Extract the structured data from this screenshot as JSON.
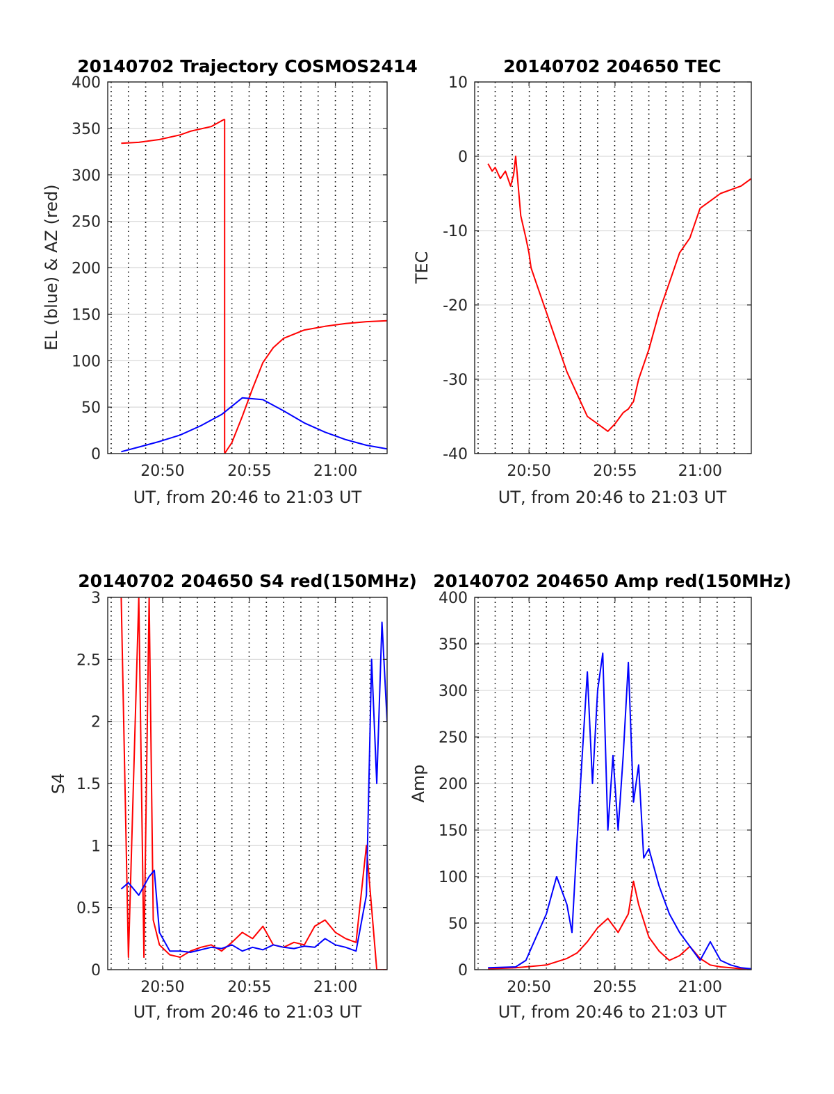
{
  "colors": {
    "red": "#ff0000",
    "blue": "#0000ff",
    "grid": "#d9d9d9",
    "dotted": "#000000",
    "axis": "#262626"
  },
  "chart_data": [
    {
      "type": "line",
      "title": "20140702 Trajectory COSMOS2414",
      "xlabel": "UT, from 20:46 to 21:03 UT",
      "ylabel": "EL (blue) & AZ (red)",
      "xlim": [
        20.78,
        21.05
      ],
      "ylim": [
        0,
        400
      ],
      "yticks": [
        0,
        50,
        100,
        150,
        200,
        250,
        300,
        350,
        400
      ],
      "ytick_labels": [
        "0",
        "50",
        "100",
        "150",
        "200",
        "250",
        "300",
        "350",
        "400"
      ],
      "xticks": [
        20.833,
        20.917,
        21.0
      ],
      "xtick_labels": [
        "20:50",
        "20:55",
        "21:00"
      ],
      "grid": true,
      "series": [
        {
          "color": "#ff0000",
          "x": [
            20.793,
            20.81,
            20.83,
            20.85,
            20.86,
            20.88,
            20.893
          ],
          "y": [
            334,
            335,
            338,
            343,
            347,
            352,
            360
          ]
        },
        {
          "color": "#ff0000",
          "x": [
            20.893,
            20.893
          ],
          "y": [
            360,
            0
          ]
        },
        {
          "color": "#ff0000",
          "x": [
            20.893,
            20.9,
            20.91,
            20.92,
            20.93,
            20.94,
            20.95,
            20.97,
            20.99,
            21.01,
            21.03,
            21.05
          ],
          "y": [
            0,
            12,
            40,
            70,
            98,
            114,
            124,
            133,
            137,
            140,
            142,
            143
          ]
        },
        {
          "color": "#0000ff",
          "x": [
            20.793,
            20.81,
            20.83,
            20.85,
            20.87,
            20.89,
            20.9,
            20.91,
            20.93,
            20.95,
            20.97,
            20.99,
            21.01,
            21.03,
            21.05
          ],
          "y": [
            2,
            7,
            13,
            20,
            30,
            42,
            51,
            60,
            58,
            46,
            33,
            23,
            15,
            9,
            5
          ]
        }
      ]
    },
    {
      "type": "line",
      "title": "20140702 204650 TEC",
      "xlabel": "UT, from 20:46 to 21:03 UT",
      "ylabel": "TEC",
      "xlim": [
        20.78,
        21.05
      ],
      "ylim": [
        -40,
        10
      ],
      "yticks": [
        -40,
        -30,
        -20,
        -10,
        0,
        10
      ],
      "ytick_labels": [
        "-40",
        "-30",
        "-20",
        "-10",
        "0",
        "10"
      ],
      "xticks": [
        20.833,
        20.917,
        21.0
      ],
      "xtick_labels": [
        "20:50",
        "20:55",
        "21:00"
      ],
      "grid": true,
      "series": [
        {
          "color": "#ff0000",
          "x": [
            20.793,
            20.797,
            20.8,
            20.805,
            20.81,
            20.815,
            20.818,
            20.82,
            20.825,
            20.83,
            20.833,
            20.835,
            20.84,
            20.85,
            20.86,
            20.87,
            20.88,
            20.89,
            20.9,
            20.91,
            20.917,
            20.925,
            20.93,
            20.935,
            20.94,
            20.95,
            20.96,
            20.97,
            20.98,
            20.99,
            21.0,
            21.02,
            21.04,
            21.05
          ],
          "y": [
            -1,
            -2,
            -1.5,
            -3,
            -2,
            -4,
            -2.5,
            0,
            -8,
            -11,
            -13,
            -15,
            -17,
            -21,
            -25,
            -29,
            -32,
            -35,
            -36,
            -37,
            -36,
            -34.5,
            -34,
            -33,
            -30,
            -26,
            -21,
            -17,
            -13,
            -11,
            -7,
            -5,
            -4,
            -3
          ]
        }
      ]
    },
    {
      "type": "line",
      "title": "20140702 204650 S4 red(150MHz)",
      "xlabel": "UT, from 20:46 to 21:03 UT",
      "ylabel": "S4",
      "xlim": [
        20.78,
        21.05
      ],
      "ylim": [
        0,
        3
      ],
      "yticks": [
        0,
        0.5,
        1,
        1.5,
        2,
        2.5,
        3
      ],
      "ytick_labels": [
        "0",
        "0.5",
        "1",
        "1.5",
        "2",
        "2.5",
        "3"
      ],
      "xticks": [
        20.833,
        20.917,
        21.0
      ],
      "xtick_labels": [
        "20:50",
        "20:55",
        "21:00"
      ],
      "grid": true,
      "series": [
        {
          "color": "#ff0000",
          "x": [
            20.793,
            20.8,
            20.81,
            20.815,
            20.82,
            20.824,
            20.83,
            20.84,
            20.85,
            20.86,
            20.87,
            20.88,
            20.89,
            20.9,
            20.91,
            20.92,
            20.93,
            20.94,
            20.95,
            20.96,
            20.97,
            20.98,
            20.99,
            21.0,
            21.01,
            21.02,
            21.03,
            21.04,
            21.05
          ],
          "y": [
            3,
            0.1,
            3,
            0.1,
            3,
            0.4,
            0.2,
            0.12,
            0.1,
            0.15,
            0.18,
            0.2,
            0.15,
            0.22,
            0.3,
            0.25,
            0.35,
            0.2,
            0.18,
            0.22,
            0.2,
            0.35,
            0.4,
            0.3,
            0.25,
            0.22,
            1.0,
            0.0,
            0.0
          ]
        },
        {
          "color": "#0000ff",
          "x": [
            20.793,
            20.8,
            20.81,
            20.82,
            20.825,
            20.83,
            20.84,
            20.85,
            20.86,
            20.87,
            20.88,
            20.89,
            20.9,
            20.91,
            20.92,
            20.93,
            20.94,
            20.95,
            20.96,
            20.97,
            20.98,
            20.99,
            21.0,
            21.01,
            21.02,
            21.03,
            21.035,
            21.04,
            21.045,
            21.05
          ],
          "y": [
            0.65,
            0.7,
            0.6,
            0.75,
            0.8,
            0.3,
            0.15,
            0.15,
            0.14,
            0.16,
            0.18,
            0.17,
            0.2,
            0.15,
            0.18,
            0.16,
            0.2,
            0.18,
            0.17,
            0.19,
            0.18,
            0.25,
            0.2,
            0.18,
            0.15,
            0.6,
            2.5,
            1.5,
            2.8,
            2.0
          ]
        }
      ]
    },
    {
      "type": "line",
      "title": "20140702 204650 Amp red(150MHz)",
      "xlabel": "UT, from 20:46 to 21:03 UT",
      "ylabel": "Amp",
      "xlim": [
        20.78,
        21.05
      ],
      "ylim": [
        0,
        400
      ],
      "yticks": [
        0,
        50,
        100,
        150,
        200,
        250,
        300,
        350,
        400
      ],
      "ytick_labels": [
        "0",
        "50",
        "100",
        "150",
        "200",
        "250",
        "300",
        "350",
        "400"
      ],
      "xticks": [
        20.833,
        20.917,
        21.0
      ],
      "xtick_labels": [
        "20:50",
        "20:55",
        "21:00"
      ],
      "grid": true,
      "series": [
        {
          "color": "#ff0000",
          "x": [
            20.793,
            20.82,
            20.85,
            20.87,
            20.88,
            20.89,
            20.9,
            20.91,
            20.92,
            20.93,
            20.935,
            20.94,
            20.95,
            20.96,
            20.97,
            20.98,
            20.99,
            21.0,
            21.01,
            21.02,
            21.03,
            21.04,
            21.05
          ],
          "y": [
            1,
            2,
            5,
            12,
            18,
            30,
            45,
            55,
            40,
            60,
            95,
            70,
            35,
            20,
            10,
            15,
            25,
            12,
            5,
            3,
            2,
            1,
            1
          ]
        },
        {
          "color": "#0000ff",
          "x": [
            20.793,
            20.82,
            20.83,
            20.84,
            20.85,
            20.86,
            20.87,
            20.875,
            20.88,
            20.89,
            20.895,
            20.9,
            20.905,
            20.91,
            20.915,
            20.92,
            20.925,
            20.93,
            20.935,
            20.94,
            20.945,
            20.95,
            20.96,
            20.97,
            20.98,
            20.99,
            21.0,
            21.01,
            21.02,
            21.03,
            21.04,
            21.05
          ],
          "y": [
            2,
            3,
            10,
            35,
            60,
            100,
            70,
            40,
            140,
            320,
            200,
            300,
            340,
            150,
            230,
            150,
            230,
            330,
            180,
            220,
            120,
            130,
            90,
            60,
            40,
            25,
            10,
            30,
            10,
            5,
            2,
            1
          ]
        }
      ]
    }
  ]
}
